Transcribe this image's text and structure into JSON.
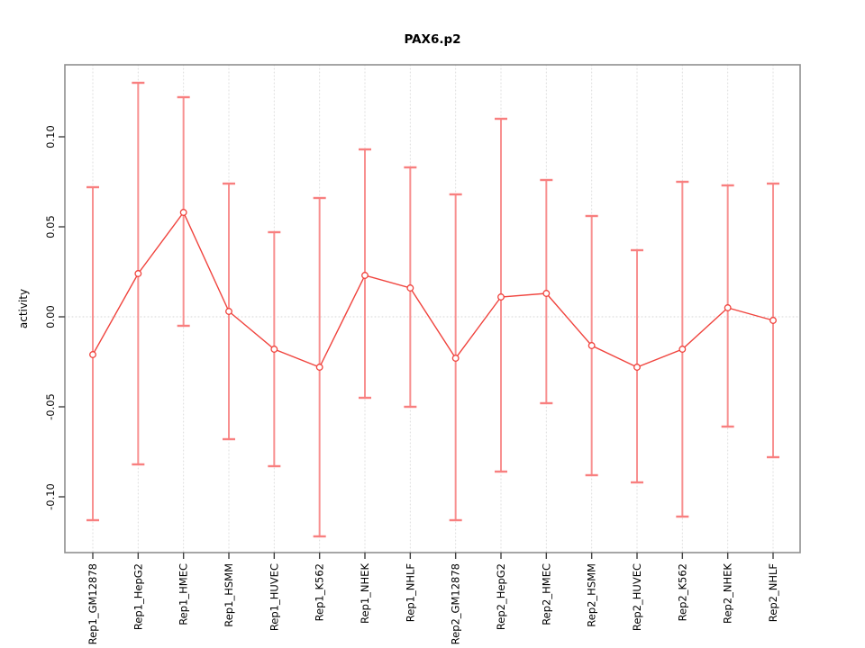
{
  "title": "PAX6.p2",
  "chart_data": {
    "type": "line",
    "title": "PAX6.p2",
    "xlabel": "",
    "ylabel": "activity",
    "legend": "none",
    "marker": "open-circle",
    "grid": "light dotted vertical gridline at each category; light dotted horizontal line at y=0",
    "ylim": [
      -0.131,
      0.14
    ],
    "yticks": [
      0.1,
      0.05,
      0.0,
      -0.05,
      -0.1
    ],
    "ytick_labels": [
      "0.10",
      "0.05",
      "0.00",
      "-0.05",
      "-0.10"
    ],
    "categories": [
      "Rep1_GM12878",
      "Rep1_HepG2",
      "Rep1_HMEC",
      "Rep1_HSMM",
      "Rep1_HUVEC",
      "Rep1_K562",
      "Rep1_NHEK",
      "Rep1_NHLF",
      "Rep2_GM12878",
      "Rep2_HepG2",
      "Rep2_HMEC",
      "Rep2_HSMM",
      "Rep2_HUVEC",
      "Rep2_K562",
      "Rep2_NHEK",
      "Rep2_NHLF"
    ],
    "series": [
      {
        "name": "activity",
        "values": [
          -0.021,
          0.024,
          0.058,
          0.003,
          -0.018,
          -0.028,
          0.023,
          0.016,
          -0.023,
          0.011,
          0.013,
          -0.016,
          -0.028,
          -0.018,
          0.005,
          -0.002
        ]
      }
    ],
    "error_bars": {
      "lower": [
        -0.113,
        -0.082,
        -0.005,
        -0.068,
        -0.083,
        -0.122,
        -0.045,
        -0.05,
        -0.113,
        -0.086,
        -0.048,
        -0.088,
        -0.092,
        -0.111,
        -0.061,
        -0.078
      ],
      "upper": [
        0.072,
        0.13,
        0.122,
        0.074,
        0.047,
        0.066,
        0.093,
        0.083,
        0.068,
        0.11,
        0.076,
        0.056,
        0.037,
        0.075,
        0.073,
        0.074
      ]
    }
  },
  "colors": {
    "series_line": "#f0433d",
    "marker_stroke": "#f0433d",
    "whisker": "#f89090",
    "whisker_cap": "#f87f7f",
    "gridline": "#dcdcdc",
    "zero_line": "#d6d6d6",
    "plot_border": "#8f8f8f",
    "tick_mark": "#404040",
    "text": "#000000"
  }
}
